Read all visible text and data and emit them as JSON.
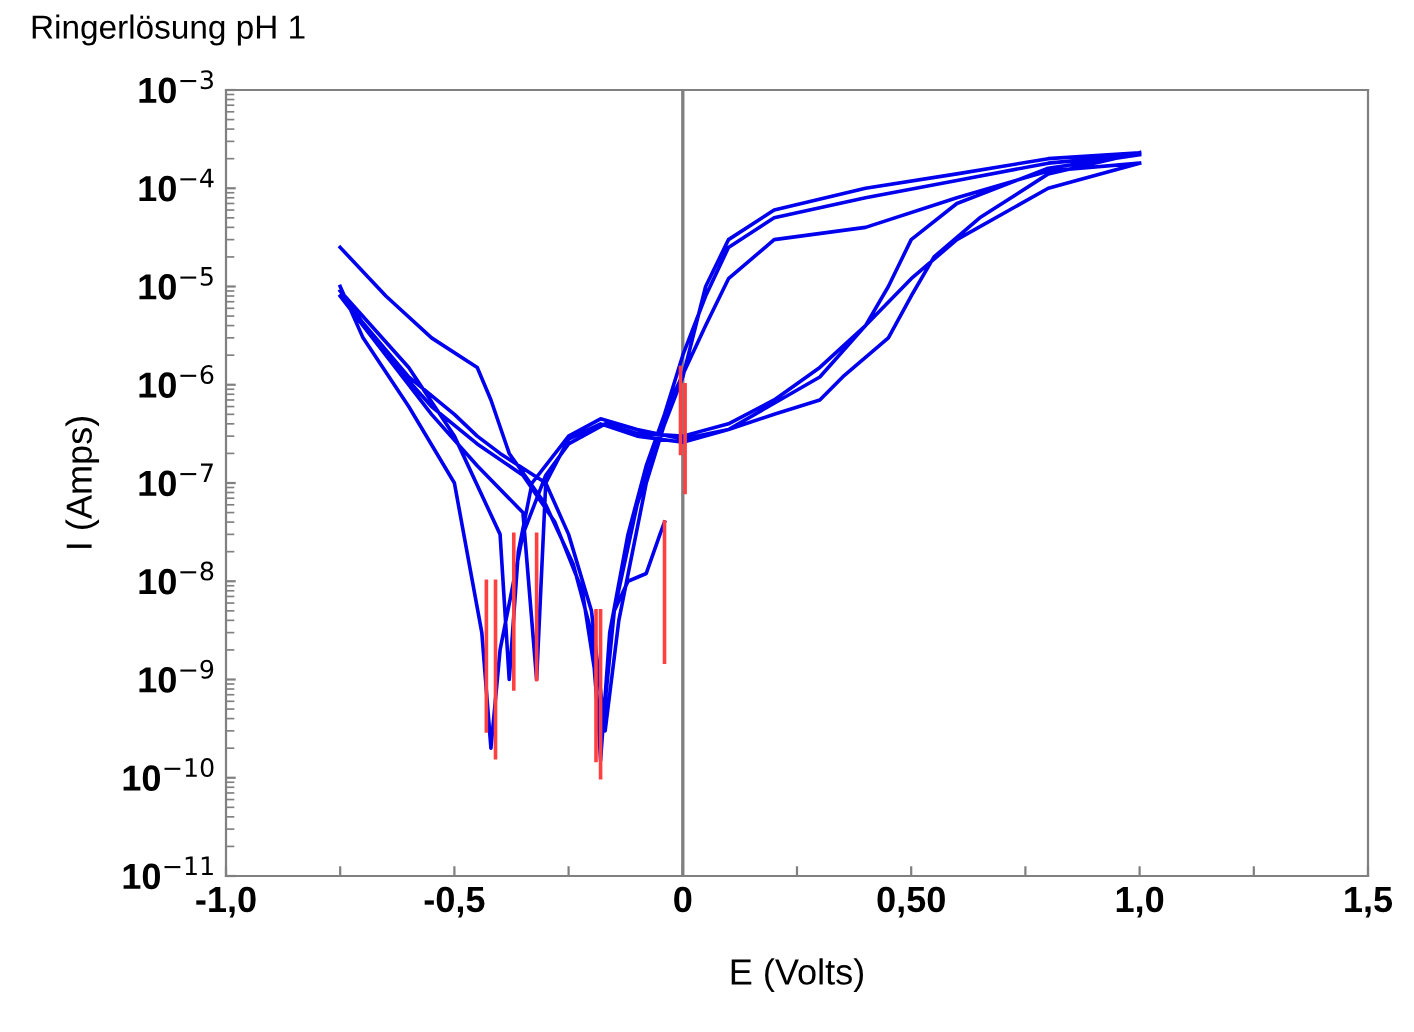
{
  "chart_data": {
    "type": "line",
    "title": "Ringerlösung pH 1",
    "xlabel": "E (Volts)",
    "ylabel": "I (Amps)",
    "log": "y",
    "xlim": [
      -1.0,
      1.5
    ],
    "ylim": [
      1e-11,
      0.001
    ],
    "xticks": [
      {
        "value": -1.0,
        "label": "-1,0"
      },
      {
        "value": -0.75,
        "label": null
      },
      {
        "value": -0.5,
        "label": "-0,5"
      },
      {
        "value": -0.25,
        "label": null
      },
      {
        "value": 0,
        "label": "0"
      },
      {
        "value": 0.25,
        "label": null
      },
      {
        "value": 0.5,
        "label": "0,50"
      },
      {
        "value": 0.75,
        "label": null
      },
      {
        "value": 1.0,
        "label": "1,0"
      },
      {
        "value": 1.25,
        "label": null
      },
      {
        "value": 1.5,
        "label": "1,5"
      }
    ],
    "yticks": [
      {
        "value": 1e-11,
        "label": "10$^{−11}$"
      },
      {
        "value": 1e-10,
        "label": "10$^{−10}$"
      },
      {
        "value": 1e-09,
        "label": "10$^{−9}$"
      },
      {
        "value": 1e-08,
        "label": "10$^{−8}$"
      },
      {
        "value": 1e-07,
        "label": "10$^{−7}$"
      },
      {
        "value": 1e-06,
        "label": "10$^{−6}$"
      },
      {
        "value": 1e-05,
        "label": "10$^{−5}$"
      },
      {
        "value": 0.0001,
        "label": "10$^{−4}$"
      },
      {
        "value": 0.001,
        "label": "10$^{−3}$"
      }
    ],
    "ref_lines": [
      {
        "axis": "x",
        "value": 0,
        "color": "#808080"
      }
    ],
    "series": [
      {
        "color": "#0000ee",
        "x": [
          -0.75,
          -0.65,
          -0.55,
          -0.45,
          -0.35,
          -0.28,
          -0.22,
          -0.19,
          -0.18,
          -0.16,
          -0.12,
          -0.08,
          -0.04,
          0,
          0.05,
          0.1,
          0.2,
          0.4,
          0.6,
          0.8,
          1.0,
          null,
          1.0,
          0.8,
          0.6,
          0.5,
          0.45,
          0.4,
          0.3,
          0.2,
          0.1,
          0.0,
          -0.1,
          -0.17,
          -0.25,
          -0.3,
          -0.35,
          -0.4,
          -0.42,
          -0.44,
          -0.5,
          -0.6,
          -0.7,
          -0.75,
          null,
          -0.75,
          -0.65,
          -0.55,
          -0.45,
          -0.42,
          -0.38,
          -0.3,
          -0.24,
          -0.2,
          -0.18,
          -0.15,
          -0.1,
          -0.05,
          0,
          0.05,
          0.1,
          0.2,
          0.4,
          0.6,
          0.8,
          1.0,
          null,
          1.0,
          0.8,
          0.65,
          0.55,
          0.5,
          0.45,
          0.35,
          0.3,
          0.2,
          0.1,
          0.0,
          -0.1,
          -0.18,
          -0.25,
          -0.33,
          -0.36,
          -0.38,
          -0.4,
          -0.5,
          -0.6,
          -0.75,
          null,
          -0.75,
          -0.6,
          -0.5,
          -0.45,
          -0.4,
          -0.3,
          -0.25,
          -0.2,
          -0.17,
          -0.14,
          -0.08,
          -0.02,
          0.05,
          0.1,
          0.2,
          0.4,
          0.6,
          0.8,
          1.0,
          null,
          1.0,
          0.8,
          0.6,
          0.5,
          0.4,
          0.3,
          0.1,
          0.0,
          -0.1,
          -0.18,
          -0.25,
          -0.3,
          -0.32,
          -0.35,
          -0.45,
          -0.55,
          -0.75,
          null,
          -0.15,
          -0.12,
          -0.08,
          -0.05,
          -0.04
        ],
        "values": [
          9e-06,
          2e-06,
          6e-07,
          2.5e-07,
          1.2e-07,
          4e-08,
          8e-09,
          1e-09,
          1.5e-10,
          3e-09,
          3e-08,
          1.5e-07,
          5e-07,
          2e-06,
          8e-06,
          2.5e-05,
          5e-05,
          8e-05,
          0.00012,
          0.00018,
          0.00022,
          null,
          0.00022,
          0.00016,
          7e-05,
          3e-05,
          1e-05,
          4e-06,
          1.5e-06,
          7e-07,
          4e-07,
          3e-07,
          3.2e-07,
          4e-07,
          2.5e-07,
          1.2e-07,
          3e-08,
          2e-09,
          2e-10,
          3e-09,
          1e-07,
          6e-07,
          3e-06,
          1e-05,
          null,
          2.5e-05,
          8e-06,
          3e-06,
          1.5e-06,
          7e-07,
          2e-07,
          6e-08,
          1.5e-08,
          3e-09,
          2e-10,
          5e-09,
          6e-08,
          3e-07,
          1.2e-06,
          1e-05,
          3e-05,
          6e-05,
          0.0001,
          0.00014,
          0.0002,
          0.00023,
          null,
          0.00023,
          0.00014,
          5e-05,
          2e-05,
          8e-06,
          3e-06,
          1.2e-06,
          7e-07,
          5e-07,
          3.5e-07,
          2.8e-07,
          3.5e-07,
          4.5e-07,
          3e-07,
          1e-07,
          2e-08,
          1e-09,
          3e-08,
          3e-07,
          1.5e-06,
          9e-06,
          null,
          8e-06,
          1.2e-06,
          5e-07,
          3e-07,
          2e-07,
          1e-07,
          3e-08,
          5e-09,
          3e-10,
          4e-09,
          1e-07,
          8e-07,
          4e-06,
          1.2e-05,
          3e-05,
          4e-05,
          8e-05,
          0.00015,
          0.00018,
          null,
          0.00018,
          0.0001,
          3e-05,
          1.2e-05,
          4e-06,
          1.2e-06,
          3.5e-07,
          2.6e-07,
          3e-07,
          4e-07,
          2.8e-07,
          1e-07,
          1e-09,
          5e-08,
          1.5e-07,
          5e-07,
          8e-06,
          null,
          5e-09,
          1e-08,
          1.2e-08,
          3e-08,
          4e-08
        ]
      },
      {
        "color": "#ff4040",
        "x": [
          -0.43,
          -0.43,
          null,
          -0.41,
          -0.41,
          null,
          -0.37,
          -0.37,
          null,
          -0.32,
          -0.32,
          null,
          -0.19,
          -0.19,
          null,
          -0.18,
          -0.18,
          null,
          -0.04,
          -0.04,
          null,
          -0.005,
          -0.005,
          null,
          0.005,
          0.005
        ],
        "values": [
          3e-10,
          1e-08,
          null,
          1.6e-10,
          1e-08,
          null,
          8e-10,
          3e-08,
          null,
          1e-09,
          3e-08,
          null,
          1.5e-10,
          5e-09,
          null,
          1e-10,
          5e-09,
          null,
          1.5e-09,
          4e-08,
          null,
          2e-07,
          1.5e-06,
          null,
          8e-08,
          1e-06
        ]
      }
    ]
  }
}
